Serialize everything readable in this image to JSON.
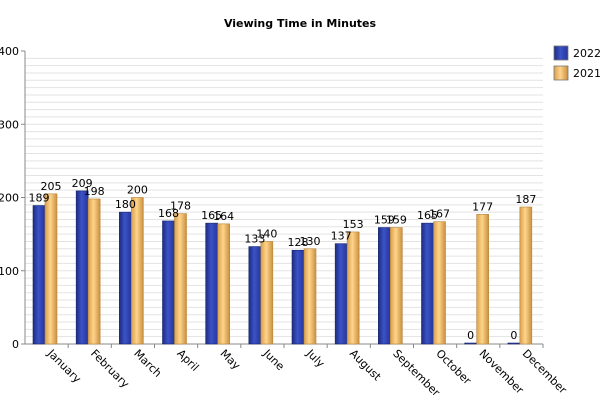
{
  "chart_data": {
    "type": "bar",
    "title": "Viewing Time in Minutes",
    "xlabel": "",
    "ylabel": "",
    "categories": [
      "January",
      "February",
      "March",
      "April",
      "May",
      "June",
      "July",
      "August",
      "September",
      "October",
      "November",
      "December"
    ],
    "series": [
      {
        "name": "2022",
        "color": "#2b3fa8",
        "values": [
          189,
          209,
          180,
          168,
          165,
          133,
          128,
          137,
          159,
          165,
          0,
          0
        ]
      },
      {
        "name": "2021",
        "color": "#f0c070",
        "values": [
          205,
          198,
          200,
          178,
          164,
          140,
          130,
          153,
          159,
          167,
          177,
          187
        ]
      }
    ],
    "ylim": [
      0,
      400
    ],
    "yticks": [
      0,
      100,
      200,
      300,
      400
    ],
    "grid": true,
    "legend_position": "right"
  }
}
